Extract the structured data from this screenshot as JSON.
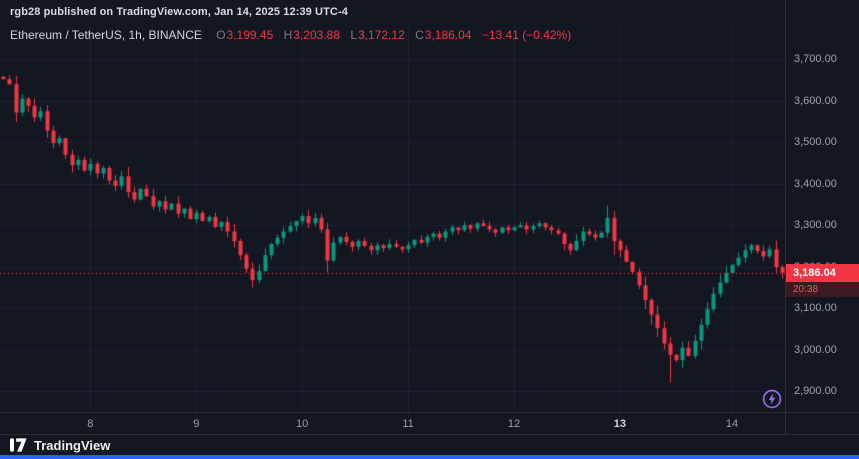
{
  "page": {
    "background": "#131722",
    "accent": "#2962ff"
  },
  "header": {
    "attribution": "rgb28 published on TradingView.com, Jan 14, 2025 12:39 UTC-4"
  },
  "symbol_bar": {
    "title": "Ethereum / TetherUS, 1h, BINANCE",
    "o_label": "O",
    "o_value": "3,199.45",
    "h_label": "H",
    "h_value": "3,203.88",
    "l_label": "L",
    "l_value": "3,172.12",
    "c_label": "C",
    "c_value": "3,186.04",
    "change": "−13.41 (−0.42%)",
    "value_color": "#f23645"
  },
  "last_price": {
    "value": "3,186.04",
    "countdown": "20:38"
  },
  "footer": {
    "brand": "TradingView"
  },
  "chart_data": {
    "type": "candlestick",
    "title": "Ethereum / TetherUS, 1h, BINANCE",
    "ylim": [
      2850,
      3761
    ],
    "grid": true,
    "legend_position": "top-left",
    "up_color": "#089981",
    "down_color": "#f23645",
    "last": 3186.04,
    "y_ticks": [
      {
        "value": 3700,
        "label": "3,700.00"
      },
      {
        "value": 3600,
        "label": "3,600.00"
      },
      {
        "value": 3500,
        "label": "3,500.00"
      },
      {
        "value": 3400,
        "label": "3,400.00"
      },
      {
        "value": 3300,
        "label": "3,300.00"
      },
      {
        "value": 3200,
        "label": "3,200.00"
      },
      {
        "value": 3100,
        "label": "3,100.00"
      },
      {
        "value": 3000,
        "label": "3,000.00"
      },
      {
        "value": 2900,
        "label": "2,900.00"
      }
    ],
    "x_ticks": [
      {
        "label": "8",
        "index": 14,
        "bold": false
      },
      {
        "label": "9",
        "index": 31,
        "bold": false
      },
      {
        "label": "10",
        "index": 48,
        "bold": false
      },
      {
        "label": "11",
        "index": 65,
        "bold": false
      },
      {
        "label": "12",
        "index": 82,
        "bold": false
      },
      {
        "label": "13",
        "index": 99,
        "bold": true
      },
      {
        "label": "14",
        "index": 117,
        "bold": false
      }
    ],
    "open_first": 3658,
    "closes": [
      3652,
      3640,
      3572,
      3605,
      3588,
      3560,
      3575,
      3528,
      3498,
      3510,
      3470,
      3445,
      3458,
      3432,
      3448,
      3425,
      3438,
      3408,
      3395,
      3418,
      3380,
      3362,
      3388,
      3370,
      3345,
      3358,
      3338,
      3352,
      3328,
      3340,
      3315,
      3330,
      3310,
      3320,
      3296,
      3308,
      3285,
      3262,
      3228,
      3195,
      3168,
      3190,
      3228,
      3255,
      3270,
      3285,
      3298,
      3310,
      3322,
      3305,
      3318,
      3290,
      3215,
      3258,
      3272,
      3260,
      3248,
      3262,
      3250,
      3240,
      3252,
      3245,
      3255,
      3248,
      3242,
      3252,
      3265,
      3258,
      3272,
      3280,
      3270,
      3285,
      3295,
      3288,
      3300,
      3292,
      3305,
      3298,
      3290,
      3282,
      3295,
      3288,
      3295,
      3300,
      3290,
      3298,
      3305,
      3295,
      3288,
      3280,
      3255,
      3240,
      3262,
      3285,
      3278,
      3270,
      3282,
      3318,
      3262,
      3240,
      3212,
      3188,
      3155,
      3120,
      3085,
      3052,
      3015,
      2988,
      2975,
      3005,
      2985,
      3022,
      3060,
      3098,
      3135,
      3162,
      3185,
      3205,
      3222,
      3240,
      3252,
      3238,
      3225,
      3242,
      3199.45,
      3186.04
    ],
    "wick_overrides": {
      "2": {
        "low": 3549,
        "high": 3660
      },
      "40": {
        "low": 3150
      },
      "52": {
        "low": 3186
      },
      "97": {
        "high": 3348
      },
      "107": {
        "low": 2921
      },
      "125": {
        "high": 3203.88,
        "low": 3172.12
      }
    }
  }
}
